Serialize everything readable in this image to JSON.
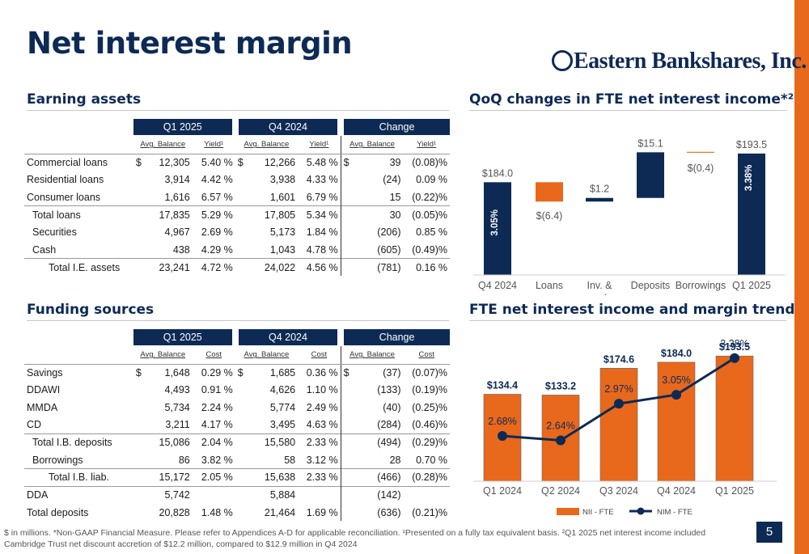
{
  "title": "Net interest margin",
  "logo_text": "Eastern Bankshares, Inc.",
  "page_number": "5",
  "footnote": "$ in millions. *Non-GAAP Financial Measure. Please refer to Appendices A-D for applicable reconciliation. ¹Presented on a fully tax equivalent basis. ²Q1 2025 net interest income included Cambridge Trust net discount accretion of $12.2 million, compared to $12.9 million in Q4 2024",
  "earning_assets": {
    "heading": "Earning assets",
    "periods": [
      "Q1 2025",
      "Q4 2024",
      "Change"
    ],
    "subheaders": [
      "Avg. Balance",
      "Yield¹",
      "Avg. Balance",
      "Yield¹",
      "Avg. Balance",
      "Yield¹"
    ],
    "rows": [
      {
        "label": "Commercial loans",
        "c1a": "$",
        "c1": "12,305",
        "c2": "5.40 %",
        "c3a": "$",
        "c3": "12,266",
        "c4": "5.48 %",
        "c5a": "$",
        "c5": "39",
        "c6": "(0.08)%"
      },
      {
        "label": "Residential loans",
        "c1a": "",
        "c1": "3,914",
        "c2": "4.42 %",
        "c3a": "",
        "c3": "3,938",
        "c4": "4.33 %",
        "c5a": "",
        "c5": "(24)",
        "c6": "0.09 %"
      },
      {
        "label": "Consumer loans",
        "c1a": "",
        "c1": "1,616",
        "c2": "6.57 %",
        "c3a": "",
        "c3": "1,601",
        "c4": "6.79 %",
        "c5a": "",
        "c5": "15",
        "c6": "(0.22)%"
      },
      {
        "label": "Total loans",
        "c1a": "",
        "c1": "17,835",
        "c2": "5.29 %",
        "c3a": "",
        "c3": "17,805",
        "c4": "5.34 %",
        "c5a": "",
        "c5": "30",
        "c6": "(0.05)%"
      },
      {
        "label": "Securities",
        "c1a": "",
        "c1": "4,967",
        "c2": "2.69 %",
        "c3a": "",
        "c3": "5,173",
        "c4": "1.84 %",
        "c5a": "",
        "c5": "(206)",
        "c6": "0.85 %"
      },
      {
        "label": "Cash",
        "c1a": "",
        "c1": "438",
        "c2": "4.29 %",
        "c3a": "",
        "c3": "1,043",
        "c4": "4.78 %",
        "c5a": "",
        "c5": "(605)",
        "c6": "(0.49)%"
      },
      {
        "label": "Total I.E. assets",
        "c1a": "",
        "c1": "23,241",
        "c2": "4.72 %",
        "c3a": "",
        "c3": "24,022",
        "c4": "4.56 %",
        "c5a": "",
        "c5": "(781)",
        "c6": "0.16 %"
      }
    ]
  },
  "funding_sources": {
    "heading": "Funding sources",
    "periods": [
      "Q1 2025",
      "Q4 2024",
      "Change"
    ],
    "subheaders": [
      "Avg. Balance",
      "Cost",
      "Avg. Balance",
      "Cost",
      "Avg. Balance",
      "Cost"
    ],
    "rows": [
      {
        "label": "Savings",
        "c1a": "$",
        "c1": "1,648",
        "c2": "0.29 %",
        "c3a": "$",
        "c3": "1,685",
        "c4": "0.36 %",
        "c5a": "$",
        "c5": "(37)",
        "c6": "(0.07)%"
      },
      {
        "label": "DDAWI",
        "c1a": "",
        "c1": "4,493",
        "c2": "0.91 %",
        "c3a": "",
        "c3": "4,626",
        "c4": "1.10 %",
        "c5a": "",
        "c5": "(133)",
        "c6": "(0.19)%"
      },
      {
        "label": "MMDA",
        "c1a": "",
        "c1": "5,734",
        "c2": "2.24 %",
        "c3a": "",
        "c3": "5,774",
        "c4": "2.49 %",
        "c5a": "",
        "c5": "(40)",
        "c6": "(0.25)%"
      },
      {
        "label": "CD",
        "c1a": "",
        "c1": "3,211",
        "c2": "4.17 %",
        "c3a": "",
        "c3": "3,495",
        "c4": "4.63 %",
        "c5a": "",
        "c5": "(284)",
        "c6": "(0.46)%"
      },
      {
        "label": "Total I.B. deposits",
        "c1a": "",
        "c1": "15,086",
        "c2": "2.04 %",
        "c3a": "",
        "c3": "15,580",
        "c4": "2.33 %",
        "c5a": "",
        "c5": "(494)",
        "c6": "(0.29)%"
      },
      {
        "label": "Borrowings",
        "c1a": "",
        "c1": "86",
        "c2": "3.82 %",
        "c3a": "",
        "c3": "58",
        "c4": "3.12 %",
        "c5a": "",
        "c5": "28",
        "c6": "0.70 %"
      },
      {
        "label": "Total I.B. liab.",
        "c1a": "",
        "c1": "15,172",
        "c2": "2.05 %",
        "c3a": "",
        "c3": "15,638",
        "c4": "2.33 %",
        "c5a": "",
        "c5": "(466)",
        "c6": "(0.28)%"
      },
      {
        "label": "DDA",
        "c1a": "",
        "c1": "5,742",
        "c2": "",
        "c3a": "",
        "c3": "5,884",
        "c4": "",
        "c5a": "",
        "c5": "(142)",
        "c6": ""
      },
      {
        "label": "Total deposits",
        "c1a": "",
        "c1": "20,828",
        "c2": "1.48 %",
        "c3a": "",
        "c3": "21,464",
        "c4": "1.69 %",
        "c5a": "",
        "c5": "(636)",
        "c6": "(0.21)%"
      }
    ]
  },
  "colors": {
    "navy": "#0d2a55",
    "orange": "#e8681c"
  },
  "chart_data": [
    {
      "type": "bar",
      "subtype": "waterfall",
      "title": "QoQ changes in FTE net interest income*²",
      "categories": [
        "Q4 2024",
        "Loans",
        "Inv. & cash",
        "Deposits",
        "Borrowings",
        "Q1 2025"
      ],
      "values": [
        184.0,
        -6.4,
        1.2,
        15.1,
        -0.4,
        193.5
      ],
      "data_labels": [
        "$184.0",
        "$(6.4)",
        "$1.2",
        "$15.1",
        "$(0.4)",
        "$193.5"
      ],
      "bar_inner_labels": [
        "3.05%",
        "",
        "",
        "",
        "",
        "3.38%"
      ]
    },
    {
      "type": "bar",
      "subtype": "bar+line",
      "title": "FTE net interest income and margin trend",
      "categories": [
        "Q1 2024",
        "Q2 2024",
        "Q3 2024",
        "Q4 2024",
        "Q1 2025"
      ],
      "series": [
        {
          "name": "NII - FTE",
          "values": [
            134.4,
            133.2,
            174.6,
            184.0,
            193.5
          ],
          "labels": [
            "$134.4",
            "$133.2",
            "$174.6",
            "$184.0",
            "$193.5"
          ]
        },
        {
          "name": "NIM - FTE",
          "values": [
            2.68,
            2.64,
            2.97,
            3.05,
            3.38
          ],
          "labels": [
            "2.68%",
            "2.64%",
            "2.97%",
            "3.05%",
            "3.38%"
          ]
        }
      ]
    }
  ]
}
